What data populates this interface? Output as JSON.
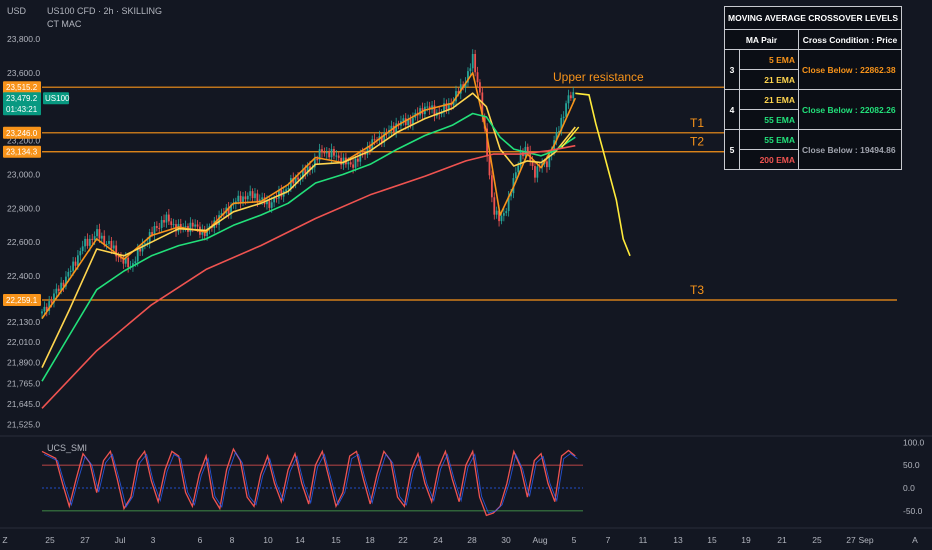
{
  "header": {
    "currency": "USD",
    "symbol": "US100 CFD · 2h · SKILLING",
    "indicator": "CT MAC",
    "oscillator": "UCS_SMI"
  },
  "axis_labels": {
    "price": [
      "23,800.0",
      "23,600.0",
      "23,400.0",
      "23,200.0",
      "23,000.0",
      "22,800.0",
      "22,600.0",
      "22,400.0",
      "22,260.0",
      "22,130.0",
      "22,010.0",
      "21,890.0",
      "21,765.0",
      "21,645.0",
      "21,525.0"
    ],
    "osc": [
      "100.0",
      "50.0",
      "0.0",
      "-50.0"
    ],
    "time": [
      "Z",
      "25",
      "27",
      "Jul",
      "3",
      "6",
      "8",
      "10",
      "14",
      "15",
      "18",
      "22",
      "24",
      "28",
      "30",
      "Aug",
      "5",
      "7",
      "11",
      "13",
      "15",
      "19",
      "21",
      "25",
      "27",
      "Sep",
      "A"
    ]
  },
  "price_tags": [
    {
      "text": "23,515.2",
      "color": "#f7931a"
    },
    {
      "text": "23,479.2",
      "color": "#089981"
    },
    {
      "text": "01:43:21",
      "color": "#089981"
    },
    {
      "text": "23,246.0",
      "color": "#f7931a"
    },
    {
      "text": "23,134.3",
      "color": "#f7931a"
    },
    {
      "text": "22,259.1",
      "color": "#f7931a"
    }
  ],
  "symbol_tag": "US100",
  "annotations": [
    {
      "text": "Upper resistance",
      "price": 23515.2
    },
    {
      "text": "T1",
      "price": 23246.0
    },
    {
      "text": "T2",
      "price": 23134.3
    },
    {
      "text": "T3",
      "price": 22259.1
    }
  ],
  "ma_table": {
    "title": "MOVING AVERAGE CROSSOVER LEVELS",
    "headers": [
      "MA Pair",
      "Cross Condition : Price"
    ],
    "rows": [
      {
        "num": "3",
        "fast": "5 EMA",
        "fast_color": "#f7931a",
        "slow": "21 EMA",
        "slow_color": "#ffd54f",
        "condition": "Close Below : 22862.38",
        "condition_color": "#f7931a"
      },
      {
        "num": "4",
        "fast": "21 EMA",
        "fast_color": "#ffd54f",
        "slow": "55 EMA",
        "slow_color": "#22e07a",
        "condition": "Close Below : 22082.26",
        "condition_color": "#22e07a"
      },
      {
        "num": "5",
        "fast": "55 EMA",
        "fast_color": "#22e07a",
        "slow": "200 EMA",
        "slow_color": "#ef5350",
        "condition": "Close Below : 19494.86",
        "condition_color": "#a0a3ad"
      }
    ]
  },
  "chart_data": {
    "type": "candlestick",
    "symbol": "US100 CFD",
    "timeframe": "2h",
    "ylim": [
      21480,
      23900
    ],
    "horizontal_levels": [
      {
        "name": "Upper resistance",
        "price": 23515.2
      },
      {
        "name": "T1",
        "price": 23246.0
      },
      {
        "name": "T2",
        "price": 23134.3
      },
      {
        "name": "T3",
        "price": 22259.1
      }
    ],
    "close_path": [
      [
        0,
        22180
      ],
      [
        2,
        22300
      ],
      [
        4,
        22420
      ],
      [
        6,
        22580
      ],
      [
        8,
        22650
      ],
      [
        10,
        22580
      ],
      [
        12,
        22480
      ],
      [
        13,
        22460
      ],
      [
        15,
        22600
      ],
      [
        17,
        22700
      ],
      [
        18,
        22740
      ],
      [
        20,
        22680
      ],
      [
        22,
        22700
      ],
      [
        24,
        22650
      ],
      [
        25,
        22710
      ],
      [
        27,
        22790
      ],
      [
        29,
        22860
      ],
      [
        31,
        22880
      ],
      [
        33,
        22820
      ],
      [
        35,
        22890
      ],
      [
        37,
        22970
      ],
      [
        39,
        23030
      ],
      [
        41,
        23140
      ],
      [
        43,
        23110
      ],
      [
        45,
        23050
      ],
      [
        47,
        23120
      ],
      [
        48,
        23180
      ],
      [
        50,
        23230
      ],
      [
        52,
        23300
      ],
      [
        54,
        23320
      ],
      [
        56,
        23400
      ],
      [
        58,
        23360
      ],
      [
        60,
        23430
      ],
      [
        62,
        23560
      ],
      [
        63,
        23680
      ],
      [
        64,
        23500
      ],
      [
        65,
        23150
      ],
      [
        66,
        22800
      ],
      [
        67,
        22720
      ],
      [
        68,
        22820
      ],
      [
        69,
        22960
      ],
      [
        70,
        23130
      ],
      [
        71,
        23140
      ],
      [
        72,
        23010
      ],
      [
        73,
        23050
      ],
      [
        74,
        23080
      ],
      [
        75,
        23200
      ],
      [
        76,
        23330
      ],
      [
        77,
        23450
      ],
      [
        78,
        23479
      ]
    ],
    "projection": [
      [
        78,
        23479
      ],
      [
        80,
        23470
      ],
      [
        81,
        23300
      ],
      [
        82,
        23150
      ],
      [
        83,
        23000
      ],
      [
        84,
        22850
      ],
      [
        85,
        22620
      ],
      [
        86,
        22520
      ]
    ],
    "ema": [
      {
        "name": "5 EMA",
        "color": "#f7931a",
        "values": [
          [
            0,
            22150
          ],
          [
            4,
            22380
          ],
          [
            8,
            22620
          ],
          [
            12,
            22500
          ],
          [
            16,
            22640
          ],
          [
            20,
            22690
          ],
          [
            24,
            22660
          ],
          [
            28,
            22830
          ],
          [
            32,
            22840
          ],
          [
            36,
            22940
          ],
          [
            40,
            23100
          ],
          [
            44,
            23070
          ],
          [
            48,
            23170
          ],
          [
            52,
            23290
          ],
          [
            56,
            23380
          ],
          [
            60,
            23420
          ],
          [
            63,
            23600
          ],
          [
            65,
            23250
          ],
          [
            67,
            22760
          ],
          [
            69,
            22930
          ],
          [
            71,
            23120
          ],
          [
            73,
            23040
          ],
          [
            75,
            23180
          ],
          [
            78,
            23450
          ]
        ]
      },
      {
        "name": "21 EMA",
        "color": "#ffd54f",
        "values": [
          [
            0,
            21860
          ],
          [
            4,
            22200
          ],
          [
            8,
            22560
          ],
          [
            12,
            22520
          ],
          [
            16,
            22600
          ],
          [
            20,
            22680
          ],
          [
            24,
            22670
          ],
          [
            28,
            22780
          ],
          [
            32,
            22830
          ],
          [
            36,
            22900
          ],
          [
            40,
            23060
          ],
          [
            44,
            23070
          ],
          [
            48,
            23140
          ],
          [
            52,
            23250
          ],
          [
            56,
            23330
          ],
          [
            60,
            23390
          ],
          [
            63,
            23480
          ],
          [
            65,
            23400
          ],
          [
            67,
            23150
          ],
          [
            69,
            23050
          ],
          [
            71,
            23080
          ],
          [
            73,
            23070
          ],
          [
            75,
            23130
          ],
          [
            78,
            23280
          ]
        ]
      },
      {
        "name": "55 EMA",
        "color": "#22e07a",
        "values": [
          [
            0,
            21780
          ],
          [
            4,
            22050
          ],
          [
            8,
            22320
          ],
          [
            12,
            22430
          ],
          [
            16,
            22520
          ],
          [
            20,
            22580
          ],
          [
            24,
            22620
          ],
          [
            28,
            22700
          ],
          [
            32,
            22760
          ],
          [
            36,
            22830
          ],
          [
            40,
            22950
          ],
          [
            44,
            23000
          ],
          [
            48,
            23060
          ],
          [
            52,
            23150
          ],
          [
            56,
            23230
          ],
          [
            60,
            23290
          ],
          [
            63,
            23360
          ],
          [
            65,
            23340
          ],
          [
            67,
            23220
          ],
          [
            69,
            23150
          ],
          [
            71,
            23130
          ],
          [
            73,
            23110
          ],
          [
            75,
            23140
          ],
          [
            78,
            23220
          ]
        ]
      },
      {
        "name": "200 EMA",
        "color": "#ef5350",
        "values": [
          [
            0,
            21620
          ],
          [
            8,
            21960
          ],
          [
            16,
            22230
          ],
          [
            24,
            22440
          ],
          [
            32,
            22580
          ],
          [
            40,
            22740
          ],
          [
            48,
            22880
          ],
          [
            56,
            22990
          ],
          [
            62,
            23080
          ],
          [
            66,
            23120
          ],
          [
            70,
            23120
          ],
          [
            74,
            23140
          ],
          [
            78,
            23170
          ]
        ]
      }
    ],
    "oscillator": {
      "name": "UCS_SMI",
      "ylim": [
        -70,
        105
      ],
      "levels": [
        50,
        0,
        -50
      ],
      "values": [
        [
          0,
          80
        ],
        [
          2,
          65
        ],
        [
          3,
          10
        ],
        [
          4,
          -40
        ],
        [
          5,
          20
        ],
        [
          6,
          75
        ],
        [
          7,
          55
        ],
        [
          8,
          -10
        ],
        [
          9,
          60
        ],
        [
          10,
          80
        ],
        [
          11,
          20
        ],
        [
          12,
          -45
        ],
        [
          13,
          -20
        ],
        [
          14,
          60
        ],
        [
          15,
          80
        ],
        [
          16,
          15
        ],
        [
          17,
          -30
        ],
        [
          18,
          40
        ],
        [
          19,
          80
        ],
        [
          20,
          70
        ],
        [
          21,
          -10
        ],
        [
          22,
          -40
        ],
        [
          23,
          30
        ],
        [
          24,
          70
        ],
        [
          25,
          -20
        ],
        [
          26,
          -45
        ],
        [
          27,
          40
        ],
        [
          28,
          85
        ],
        [
          29,
          60
        ],
        [
          30,
          -20
        ],
        [
          31,
          -40
        ],
        [
          32,
          30
        ],
        [
          33,
          70
        ],
        [
          34,
          10
        ],
        [
          35,
          -30
        ],
        [
          36,
          40
        ],
        [
          37,
          75
        ],
        [
          38,
          10
        ],
        [
          39,
          -35
        ],
        [
          40,
          50
        ],
        [
          41,
          80
        ],
        [
          42,
          20
        ],
        [
          43,
          -40
        ],
        [
          44,
          -10
        ],
        [
          45,
          70
        ],
        [
          46,
          80
        ],
        [
          47,
          20
        ],
        [
          48,
          -35
        ],
        [
          49,
          30
        ],
        [
          50,
          80
        ],
        [
          51,
          60
        ],
        [
          52,
          -20
        ],
        [
          53,
          -40
        ],
        [
          54,
          40
        ],
        [
          55,
          75
        ],
        [
          56,
          10
        ],
        [
          57,
          -30
        ],
        [
          58,
          45
        ],
        [
          59,
          80
        ],
        [
          60,
          20
        ],
        [
          61,
          -30
        ],
        [
          62,
          50
        ],
        [
          63,
          80
        ],
        [
          64,
          -20
        ],
        [
          65,
          -60
        ],
        [
          66,
          -55
        ],
        [
          67,
          -40
        ],
        [
          68,
          10
        ],
        [
          69,
          80
        ],
        [
          70,
          45
        ],
        [
          71,
          -20
        ],
        [
          72,
          60
        ],
        [
          73,
          75
        ],
        [
          74,
          10
        ],
        [
          75,
          -30
        ],
        [
          76,
          70
        ],
        [
          77,
          82
        ],
        [
          78,
          70
        ]
      ]
    }
  }
}
